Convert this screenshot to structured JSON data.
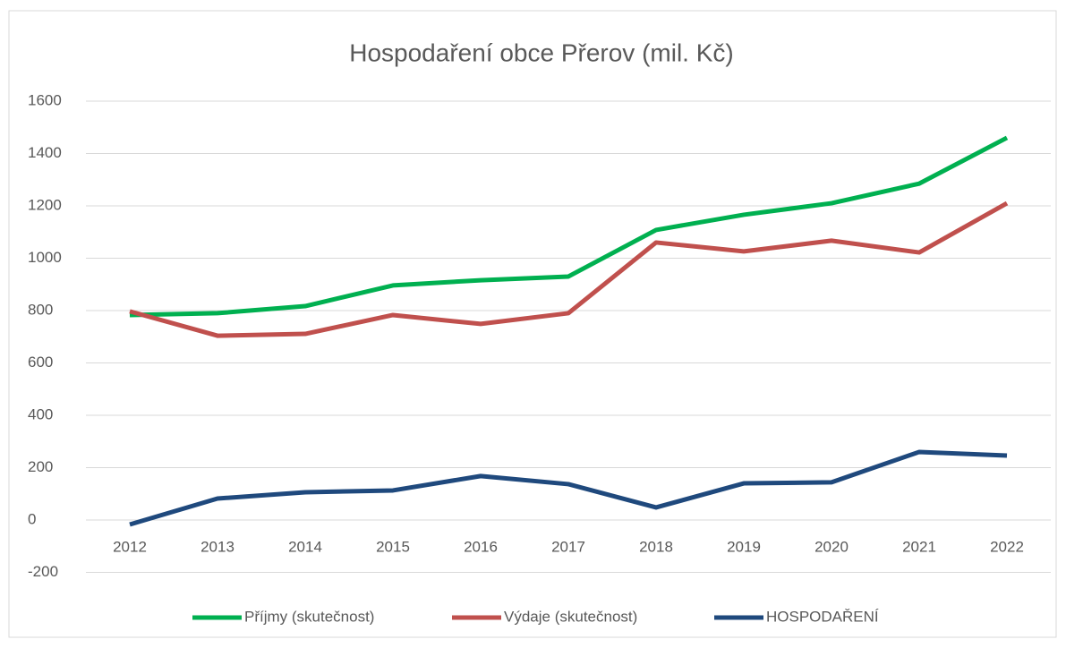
{
  "chart_data": {
    "type": "line",
    "title": "Hospodaření obce Přerov (mil. Kč)",
    "categories": [
      "2012",
      "2013",
      "2014",
      "2015",
      "2016",
      "2017",
      "2018",
      "2019",
      "2020",
      "2021",
      "2022"
    ],
    "series": [
      {
        "name": "Příjmy (skutečnost)",
        "color": "#00b050",
        "values": [
          783,
          790,
          817,
          896,
          916,
          930,
          1108,
          1166,
          1210,
          1285,
          1460
        ]
      },
      {
        "name": "Výdaje (skutečnost)",
        "color": "#c0504d",
        "values": [
          797,
          704,
          711,
          783,
          749,
          790,
          1060,
          1026,
          1067,
          1022,
          1210
        ]
      },
      {
        "name": "HOSPODAŘENÍ",
        "color": "#1f497d",
        "values": [
          -17,
          82,
          106,
          113,
          168,
          137,
          48,
          140,
          144,
          260,
          246
        ]
      }
    ],
    "ylim": [
      -200,
      1600
    ],
    "yticks": [
      -200,
      0,
      200,
      400,
      600,
      800,
      1000,
      1200,
      1400,
      1600
    ],
    "grid": true,
    "legend": "bottom"
  }
}
